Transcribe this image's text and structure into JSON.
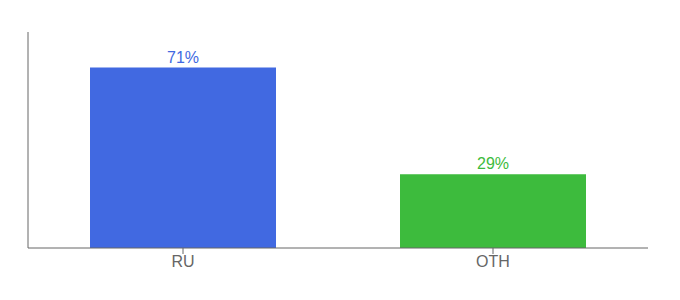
{
  "chart_data": {
    "type": "bar",
    "categories": [
      "RU",
      "OTH"
    ],
    "values": [
      71,
      29
    ],
    "value_labels": [
      "71%",
      "29%"
    ],
    "colors": [
      "#4169e1",
      "#3dbb3d"
    ],
    "ylim": [
      0,
      85
    ],
    "data_labels": true,
    "tick_labels": "x",
    "grid": false
  }
}
